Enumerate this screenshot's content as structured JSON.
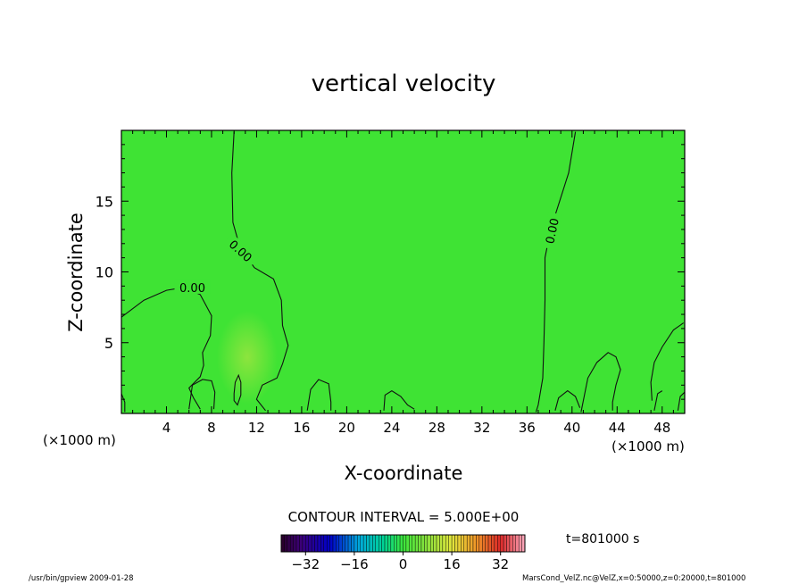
{
  "chart_data": {
    "type": "contour",
    "title": "vertical velocity",
    "xlabel": "X-coordinate",
    "ylabel": "Z-coordinate",
    "x_unit": "(×1000 m)",
    "y_unit_left": "(×1000 m)",
    "x_unit_right": "(×1000 m)",
    "xlim": [
      0,
      50
    ],
    "ylim": [
      0,
      20
    ],
    "x_ticks": [
      4,
      8,
      12,
      16,
      20,
      24,
      28,
      32,
      36,
      40,
      44,
      48
    ],
    "y_ticks": [
      5,
      10,
      15
    ],
    "contour_interval_text": "CONTOUR INTERVAL = 5.000E+00",
    "contour_label": "0.00",
    "contour_lines": [
      {
        "name": "left-band",
        "label": "0.00",
        "points": [
          [
            0,
            6.8
          ],
          [
            2,
            8
          ],
          [
            4,
            8.7
          ],
          [
            5.5,
            8.9
          ],
          [
            7,
            8.4
          ],
          [
            8,
            6.9
          ],
          [
            7.9,
            5.5
          ],
          [
            7.2,
            4.3
          ],
          [
            7.3,
            3.4
          ],
          [
            7,
            2.6
          ],
          [
            6,
            1.8
          ],
          [
            6.4,
            1.1
          ],
          [
            7,
            0.3
          ]
        ]
      },
      {
        "name": "central-band",
        "label": "0.00",
        "points": [
          [
            10,
            19.9
          ],
          [
            9.8,
            17
          ],
          [
            9.9,
            13.5
          ],
          [
            10.5,
            11.8
          ],
          [
            11.8,
            10.3
          ],
          [
            13.5,
            9.5
          ],
          [
            14.2,
            8
          ],
          [
            14.3,
            6.2
          ],
          [
            14.8,
            4.8
          ],
          [
            14.3,
            3.5
          ],
          [
            13.8,
            2.5
          ],
          [
            12.5,
            2
          ],
          [
            12,
            1
          ],
          [
            12.8,
            0.2
          ]
        ]
      },
      {
        "name": "right-band",
        "label": "0.00",
        "points": [
          [
            40.3,
            19.9
          ],
          [
            39.7,
            17
          ],
          [
            38.9,
            15
          ],
          [
            38.1,
            13
          ],
          [
            37.6,
            11
          ],
          [
            37.6,
            8
          ],
          [
            37.5,
            5
          ],
          [
            37.4,
            2.5
          ],
          [
            37,
            0.6
          ],
          [
            36.8,
            0.1
          ]
        ]
      },
      {
        "name": "updraft-cell",
        "points": [
          [
            10,
            1.4
          ],
          [
            10.1,
            2.2
          ],
          [
            10.4,
            2.7
          ],
          [
            10.6,
            2.2
          ],
          [
            10.6,
            1.3
          ],
          [
            10.3,
            0.6
          ],
          [
            10,
            0.9
          ],
          [
            10,
            1.4
          ]
        ]
      },
      {
        "name": "right-edge",
        "points": [
          [
            49.9,
            6.4
          ],
          [
            49,
            5.9
          ],
          [
            48,
            4.7
          ],
          [
            47.3,
            3.6
          ],
          [
            47,
            2.2
          ],
          [
            47.1,
            0.9
          ]
        ]
      }
    ],
    "surface_bumps": [
      {
        "points": [
          [
            0,
            1.4
          ],
          [
            0.3,
            0.8
          ],
          [
            0.3,
            0.1
          ]
        ]
      },
      {
        "points": [
          [
            6,
            0.3
          ],
          [
            6.3,
            2.0
          ],
          [
            7.2,
            2.4
          ],
          [
            8,
            2.3
          ],
          [
            8.3,
            1.5
          ],
          [
            8.2,
            0.3
          ]
        ]
      },
      {
        "points": [
          [
            16.5,
            0.2
          ],
          [
            16.8,
            1.7
          ],
          [
            17.5,
            2.4
          ],
          [
            18.4,
            2.1
          ],
          [
            18.6,
            0.8
          ],
          [
            18.6,
            0.2
          ]
        ]
      },
      {
        "points": [
          [
            23.3,
            0.2
          ],
          [
            23.4,
            1.3
          ],
          [
            24,
            1.6
          ],
          [
            24.8,
            1.2
          ],
          [
            25.4,
            0.6
          ],
          [
            26,
            0.3
          ]
        ]
      },
      {
        "points": [
          [
            38.5,
            0.2
          ],
          [
            38.8,
            1.1
          ],
          [
            39.6,
            1.6
          ],
          [
            40.3,
            1.2
          ],
          [
            40.7,
            0.4
          ]
        ]
      },
      {
        "points": [
          [
            40.8,
            0.1
          ],
          [
            41.4,
            2.5
          ],
          [
            42.2,
            3.6
          ],
          [
            43.2,
            4.3
          ],
          [
            43.9,
            4.0
          ],
          [
            44.3,
            3.1
          ],
          [
            43.9,
            2.0
          ],
          [
            43.6,
            0.8
          ],
          [
            43.6,
            0.2
          ]
        ]
      },
      {
        "points": [
          [
            47.3,
            0.2
          ],
          [
            47.6,
            1.4
          ],
          [
            48.0,
            1.6
          ]
        ]
      },
      {
        "points": [
          [
            49.4,
            0.2
          ],
          [
            49.6,
            1.2
          ],
          [
            50,
            1.5
          ]
        ]
      }
    ],
    "colorbar": {
      "min": -40,
      "max": 40,
      "tick_values": [
        -32,
        -16,
        0,
        16,
        32
      ],
      "tick_labels": [
        "−32",
        "−16",
        "0",
        "16",
        "32"
      ]
    },
    "colors": {
      "background_field": "#3fe334",
      "updraft_tint": "#8fe63a",
      "contour": "#111111"
    }
  },
  "annotations": {
    "time": "t=801000 s",
    "footer_left": "/usr/bin/gpview   2009-01-28",
    "footer_right": "MarsCond_VelZ.nc@VelZ,x=0:50000,z=0:20000,t=801000"
  }
}
